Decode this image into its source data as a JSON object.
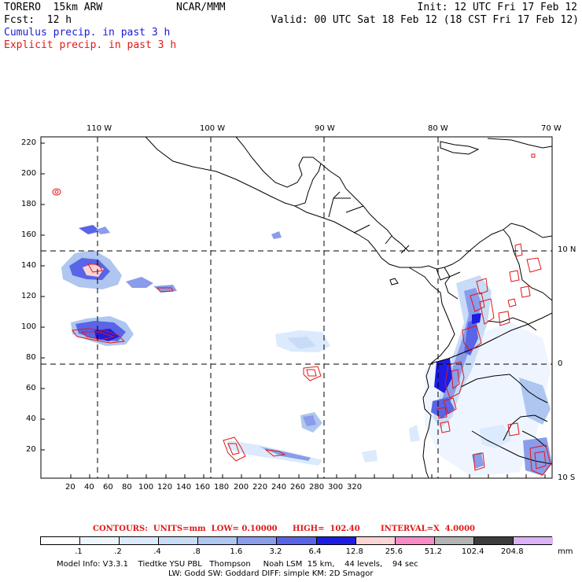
{
  "header": {
    "model": "TORERO  15km ARW",
    "org": "NCAR/MMM",
    "init": "Init: 12 UTC Fri 17 Feb 12",
    "fcst": "Fcst:  12 h",
    "valid": "Valid: 00 UTC Sat 18 Feb 12 (18 CST Fri 17 Feb 12)",
    "field1": "Cumulus precip. in past 3 h",
    "field2": "Explicit precip. in past 3 h"
  },
  "colors": {
    "field1": "#1a1ad6",
    "field2": "#e01818"
  },
  "map": {
    "lon_labels": [
      "110 W",
      "100 W",
      "90 W",
      "80 W",
      "70 W"
    ],
    "lat_labels": [
      "10 N",
      "0",
      "10 S"
    ],
    "x_ticks": [
      "20",
      "40",
      "60",
      "80",
      "100",
      "120",
      "140",
      "160",
      "180",
      "200",
      "220",
      "240",
      "260",
      "280",
      "300",
      "320"
    ],
    "y_ticks": [
      "220",
      "200",
      "180",
      "160",
      "140",
      "120",
      "100",
      "80",
      "60",
      "40",
      "20"
    ]
  },
  "contour_info": {
    "units": "CONTOURS:  UNITS=mm  LOW= 0.10000",
    "high": "HIGH=  102.40",
    "interval": "INTERVAL=X  4.0000"
  },
  "colorbar": {
    "labels": [
      ".1",
      ".2",
      ".4",
      ".8",
      "1.6",
      "3.2",
      "6.4",
      "12.8",
      "25.6",
      "51.2",
      "102.4",
      "204.8"
    ],
    "unit": "mm",
    "colors": [
      "#ffffff",
      "#eef5ff",
      "#dbeafc",
      "#c8dcf8",
      "#aec6f0",
      "#8a9cea",
      "#5a64e6",
      "#1c1ce4",
      "#fcd4d4",
      "#f88cc8",
      "#b4b4b4",
      "#3c3c3c",
      "#dcb2f6"
    ]
  },
  "footer": {
    "line1": "Model Info: V3.3.1    Tiedtke YSU PBL   Thompson     Noah LSM  15 km,    44 levels,    94 sec",
    "line2": "LW: Godd SW: Goddard DIFF: simple KM: 2D Smagor"
  }
}
